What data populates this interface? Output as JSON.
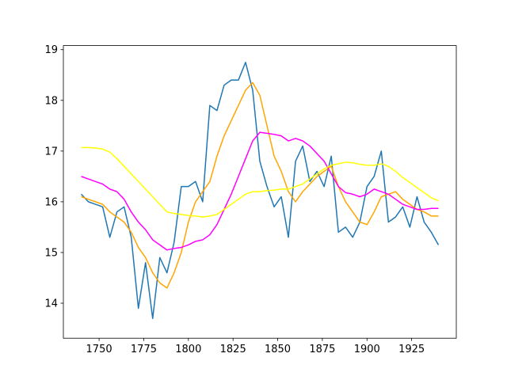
{
  "chart_data": {
    "type": "line",
    "x": [
      1740,
      1744,
      1748,
      1752,
      1756,
      1760,
      1764,
      1768,
      1772,
      1776,
      1780,
      1784,
      1788,
      1792,
      1796,
      1800,
      1804,
      1808,
      1812,
      1816,
      1820,
      1824,
      1828,
      1832,
      1836,
      1840,
      1844,
      1848,
      1852,
      1856,
      1860,
      1864,
      1868,
      1872,
      1876,
      1880,
      1884,
      1888,
      1892,
      1896,
      1900,
      1904,
      1908,
      1912,
      1916,
      1920,
      1924,
      1928,
      1932,
      1936,
      1940
    ],
    "series": [
      {
        "color": "#1f77b4",
        "values": [
          16.15,
          16.0,
          15.95,
          15.9,
          15.3,
          15.8,
          15.9,
          15.3,
          13.9,
          14.8,
          13.7,
          14.9,
          14.6,
          15.2,
          16.3,
          16.3,
          16.4,
          16.0,
          17.9,
          17.8,
          18.3,
          18.4,
          18.4,
          18.75,
          18.2,
          16.8,
          16.3,
          15.9,
          16.1,
          15.3,
          16.8,
          17.1,
          16.4,
          16.6,
          16.3,
          16.9,
          15.4,
          15.5,
          15.3,
          15.6,
          16.3,
          16.5,
          17.0,
          15.6,
          15.7,
          15.9,
          15.5,
          16.1,
          15.6,
          15.4,
          15.15
        ]
      },
      {
        "color": "orange",
        "values": [
          16.1,
          16.05,
          16.0,
          15.95,
          15.8,
          15.7,
          15.6,
          15.4,
          15.1,
          14.9,
          14.6,
          14.4,
          14.3,
          14.6,
          15.0,
          15.6,
          16.0,
          16.2,
          16.4,
          16.9,
          17.3,
          17.6,
          17.9,
          18.2,
          18.35,
          18.1,
          17.5,
          16.9,
          16.6,
          16.2,
          16.0,
          16.2,
          16.35,
          16.5,
          16.6,
          16.7,
          16.3,
          16.0,
          15.8,
          15.6,
          15.55,
          15.8,
          16.1,
          16.15,
          16.2,
          16.05,
          15.95,
          15.85,
          15.8,
          15.72,
          15.72
        ]
      },
      {
        "color": "magenta",
        "values": [
          16.5,
          16.45,
          16.4,
          16.35,
          16.25,
          16.2,
          16.05,
          15.8,
          15.6,
          15.45,
          15.25,
          15.15,
          15.05,
          15.08,
          15.1,
          15.15,
          15.22,
          15.25,
          15.35,
          15.55,
          15.85,
          16.15,
          16.5,
          16.85,
          17.2,
          17.37,
          17.35,
          17.33,
          17.3,
          17.2,
          17.25,
          17.2,
          17.1,
          16.95,
          16.8,
          16.55,
          16.3,
          16.18,
          16.15,
          16.1,
          16.15,
          16.25,
          16.2,
          16.15,
          16.05,
          15.95,
          15.9,
          15.85,
          15.85,
          15.87,
          15.87
        ]
      },
      {
        "color": "yellow",
        "values": [
          17.07,
          17.07,
          17.06,
          17.04,
          16.98,
          16.85,
          16.7,
          16.55,
          16.4,
          16.25,
          16.1,
          15.95,
          15.8,
          15.77,
          15.75,
          15.73,
          15.72,
          15.7,
          15.72,
          15.75,
          15.85,
          15.95,
          16.05,
          16.15,
          16.2,
          16.2,
          16.22,
          16.23,
          16.25,
          16.25,
          16.3,
          16.35,
          16.45,
          16.55,
          16.65,
          16.72,
          16.75,
          16.78,
          16.77,
          16.74,
          16.72,
          16.72,
          16.75,
          16.7,
          16.6,
          16.48,
          16.38,
          16.28,
          16.18,
          16.08,
          16.02
        ]
      }
    ],
    "xlim": [
      1730,
      1950
    ],
    "xticks": [
      1750,
      1775,
      1800,
      1825,
      1850,
      1875,
      1900,
      1925
    ],
    "ylim": [
      13.31,
      19.08
    ],
    "yticks": [
      14,
      15,
      16,
      17,
      18,
      19
    ]
  }
}
